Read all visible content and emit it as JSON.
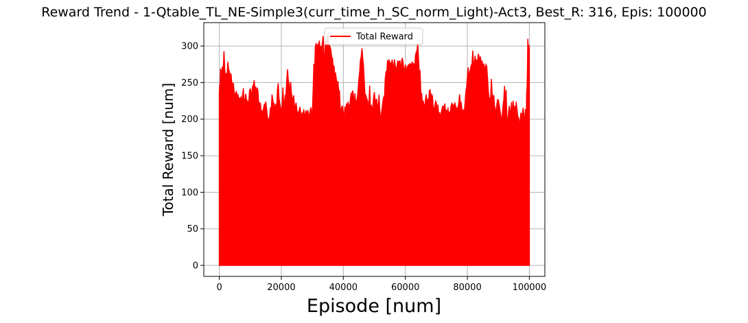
{
  "chart_data": {
    "type": "area",
    "title": "Reward Trend - 1-Qtable_TL_NE-Simple3(curr_time_h_SC_norm_Light)-Act3, Best_R: 316, Epis: 100000",
    "xlabel": "Episode [num]",
    "ylabel": "Total Reward [num]",
    "xlim": [
      -5000,
      105000
    ],
    "ylim": [
      -15,
      332
    ],
    "x_ticks": [
      0,
      20000,
      40000,
      60000,
      80000,
      100000
    ],
    "x_tick_labels": [
      "0",
      "20000",
      "40000",
      "60000",
      "80000",
      "100000"
    ],
    "y_ticks": [
      0,
      50,
      100,
      150,
      200,
      250,
      300
    ],
    "y_tick_labels": [
      "0",
      "50",
      "100",
      "150",
      "200",
      "250",
      "300"
    ],
    "grid": true,
    "legend_position": "upper center",
    "series": [
      {
        "name": "Total Reward",
        "color": "#ff0000",
        "description": "Dense per-episode reward; each episode oscillates between 0 and the upper envelope below.",
        "min_value": 0,
        "upper_envelope": {
          "x": [
            0,
            500,
            1000,
            2000,
            3000,
            4000,
            5000,
            6000,
            7000,
            8000,
            9000,
            10000,
            11000,
            12000,
            13000,
            14000,
            15000,
            16000,
            17000,
            18000,
            19000,
            20000,
            21000,
            22000,
            23000,
            24000,
            25000,
            26000,
            27000,
            28000,
            29000,
            30000,
            31000,
            32000,
            33000,
            34000,
            35000,
            36000,
            37000,
            38000,
            39000,
            40000,
            41000,
            42000,
            43000,
            44000,
            45000,
            46000,
            47000,
            48000,
            49000,
            50000,
            51000,
            52000,
            53000,
            54000,
            55000,
            56000,
            57000,
            58000,
            59000,
            60000,
            61000,
            62000,
            63000,
            64000,
            65000,
            66000,
            67000,
            68000,
            69000,
            70000,
            71000,
            72000,
            73000,
            74000,
            75000,
            76000,
            77000,
            78000,
            79000,
            80000,
            81000,
            82000,
            83000,
            84000,
            85000,
            86000,
            87000,
            88000,
            89000,
            90000,
            91000,
            92000,
            93000,
            94000,
            95000,
            96000,
            97000,
            98000,
            99000,
            99500,
            100000
          ],
          "y": [
            245,
            262,
            275,
            270,
            272,
            268,
            240,
            238,
            235,
            238,
            232,
            250,
            255,
            250,
            225,
            215,
            225,
            210,
            235,
            225,
            238,
            230,
            235,
            262,
            240,
            225,
            215,
            218,
            215,
            218,
            215,
            225,
            305,
            310,
            308,
            300,
            305,
            300,
            275,
            250,
            230,
            215,
            225,
            230,
            245,
            225,
            260,
            310,
            240,
            235,
            225,
            240,
            225,
            215,
            230,
            280,
            285,
            288,
            280,
            285,
            282,
            280,
            285,
            280,
            282,
            305,
            240,
            225,
            225,
            245,
            230,
            225,
            215,
            220,
            222,
            215,
            225,
            235,
            230,
            225,
            225,
            270,
            280,
            288,
            290,
            292,
            282,
            275,
            245,
            240,
            220,
            235,
            210,
            235,
            210,
            215,
            225,
            215,
            212,
            215,
            215,
            305,
            300
          ]
        }
      }
    ]
  }
}
